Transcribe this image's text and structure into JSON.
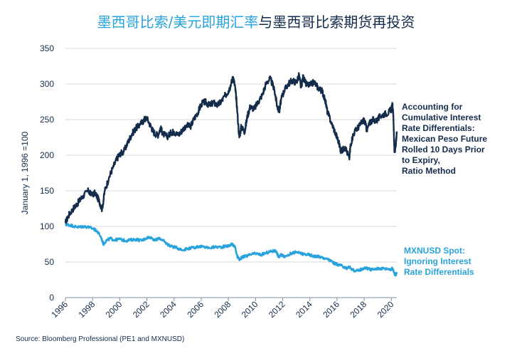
{
  "title": {
    "part1": "墨西哥比索/美元即期汇率",
    "part2": "与墨西哥比索期货再投资"
  },
  "source": "Source: Bloomberg Professional (PE1 and MXNUSD)",
  "colors": {
    "pe1": "#142c4c",
    "mxn": "#29a3dc",
    "grid": "#d9d9d9",
    "text": "#142c4c"
  },
  "chart_data": {
    "type": "line",
    "title": "墨西哥比索/美元即期汇率与墨西哥比索期货再投资",
    "xlabel": "",
    "ylabel": "January 1, 1996 =100",
    "xlim": [
      1996,
      2020.4
    ],
    "ylim": [
      0,
      350
    ],
    "yticks": [
      0,
      50,
      100,
      150,
      200,
      250,
      300,
      350
    ],
    "xticks": [
      1996,
      1998,
      2000,
      2002,
      2004,
      2006,
      2008,
      2010,
      2012,
      2014,
      2016,
      2018,
      2020
    ],
    "xtick_labels": [
      "1996",
      "1998",
      "2000",
      "2002",
      "2004",
      "2006",
      "2008",
      "2010",
      "2012",
      "2014",
      "2016",
      "2018",
      "2020"
    ],
    "grid": "horizontal",
    "legend_placement": "right",
    "series": [
      {
        "name": "Accounting for Cumulative Interest Rate Differentials: Mexican Peso Future Rolled 10 Days Prior to Expiry, Ratio Method",
        "color": "#142c4c",
        "x": [
          1996.0,
          1996.3,
          1996.7,
          1997.0,
          1997.3,
          1997.7,
          1997.9,
          1998.2,
          1998.5,
          1998.7,
          1998.9,
          1999.2,
          1999.5,
          1999.8,
          2000.0,
          2000.3,
          2000.6,
          2000.9,
          2001.2,
          2001.5,
          2001.8,
          2002.0,
          2002.3,
          2002.5,
          2002.8,
          2003.0,
          2003.2,
          2003.5,
          2003.8,
          2004.0,
          2004.3,
          2004.6,
          2004.9,
          2005.2,
          2005.5,
          2005.8,
          2006.0,
          2006.3,
          2006.6,
          2006.9,
          2007.2,
          2007.5,
          2007.8,
          2008.0,
          2008.2,
          2008.35,
          2008.5,
          2008.6,
          2008.8,
          2008.95,
          2009.2,
          2009.4,
          2009.6,
          2009.9,
          2010.2,
          2010.5,
          2010.8,
          2011.1,
          2011.4,
          2011.6,
          2011.75,
          2011.9,
          2012.1,
          2012.4,
          2012.7,
          2013.0,
          2013.2,
          2013.35,
          2013.5,
          2013.7,
          2014.0,
          2014.3,
          2014.6,
          2014.9,
          2015.1,
          2015.3,
          2015.6,
          2015.9,
          2016.1,
          2016.3,
          2016.6,
          2016.9,
          2017.0,
          2017.2,
          2017.5,
          2017.8,
          2018.0,
          2018.2,
          2018.4,
          2018.6,
          2018.9,
          2019.2,
          2019.5,
          2019.8,
          2020.0,
          2020.08,
          2020.15,
          2020.22,
          2020.3,
          2020.4
        ],
        "values": [
          105,
          118,
          128,
          135,
          143,
          150,
          144,
          147,
          135,
          124,
          150,
          168,
          183,
          195,
          202,
          205,
          218,
          230,
          238,
          243,
          250,
          252,
          240,
          232,
          228,
          238,
          230,
          226,
          232,
          233,
          228,
          235,
          242,
          240,
          252,
          262,
          272,
          275,
          270,
          274,
          270,
          276,
          285,
          290,
          300,
          310,
          295,
          275,
          225,
          240,
          233,
          255,
          268,
          265,
          275,
          285,
          302,
          308,
          290,
          268,
          262,
          280,
          290,
          300,
          305,
          302,
          312,
          295,
          310,
          300,
          298,
          303,
          295,
          290,
          280,
          260,
          245,
          230,
          220,
          205,
          212,
          195,
          215,
          230,
          238,
          245,
          250,
          235,
          245,
          250,
          248,
          255,
          258,
          260,
          265,
          270,
          255,
          205,
          210,
          230
        ]
      },
      {
        "name": "MXNUSD Spot: Ignoring Interest Rate Differentials",
        "color": "#29a3dc",
        "x": [
          1996.0,
          1996.3,
          1996.7,
          1997.0,
          1997.3,
          1997.7,
          1998.0,
          1998.3,
          1998.6,
          1998.8,
          1999.0,
          1999.3,
          1999.6,
          2000.0,
          2000.4,
          2000.8,
          2001.2,
          2001.6,
          2002.0,
          2002.3,
          2002.6,
          2002.9,
          2003.2,
          2003.5,
          2003.8,
          2004.2,
          2004.6,
          2005.0,
          2005.4,
          2005.8,
          2006.2,
          2006.6,
          2007.0,
          2007.4,
          2007.8,
          2008.1,
          2008.3,
          2008.5,
          2008.65,
          2008.85,
          2009.0,
          2009.3,
          2009.6,
          2010.0,
          2010.4,
          2010.8,
          2011.2,
          2011.5,
          2011.7,
          2011.9,
          2012.2,
          2012.6,
          2013.0,
          2013.3,
          2013.6,
          2014.0,
          2014.3,
          2014.6,
          2014.9,
          2015.2,
          2015.5,
          2015.8,
          2016.1,
          2016.4,
          2016.7,
          2016.9,
          2017.1,
          2017.4,
          2017.8,
          2018.1,
          2018.4,
          2018.7,
          2019.0,
          2019.4,
          2019.8,
          2020.0,
          2020.1,
          2020.2,
          2020.3,
          2020.4
        ],
        "values": [
          103,
          102,
          100,
          99,
          100,
          99,
          97,
          94,
          86,
          75,
          80,
          83,
          81,
          82,
          80,
          81,
          82,
          80,
          84,
          85,
          80,
          84,
          80,
          75,
          72,
          70,
          67,
          69,
          70,
          72,
          71,
          70,
          71,
          71,
          72,
          73,
          76,
          70,
          58,
          53,
          57,
          58,
          60,
          62,
          60,
          63,
          65,
          66,
          57,
          60,
          58,
          62,
          64,
          62,
          61,
          60,
          58,
          58,
          56,
          55,
          52,
          48,
          46,
          44,
          41,
          43,
          40,
          37,
          40,
          42,
          40,
          39,
          41,
          41,
          40,
          40,
          41,
          35,
          32,
          34
        ]
      }
    ]
  },
  "legend": {
    "pe1": [
      "Accounting for",
      "Cumulative Interest",
      "Rate Differentials:",
      "Mexican Peso Future",
      "Rolled 10 Days Prior",
      "to Expiry,",
      "Ratio Method"
    ],
    "mxn": [
      "MXNUSD Spot:",
      "Ignoring Interest",
      "Rate Differentials"
    ]
  }
}
